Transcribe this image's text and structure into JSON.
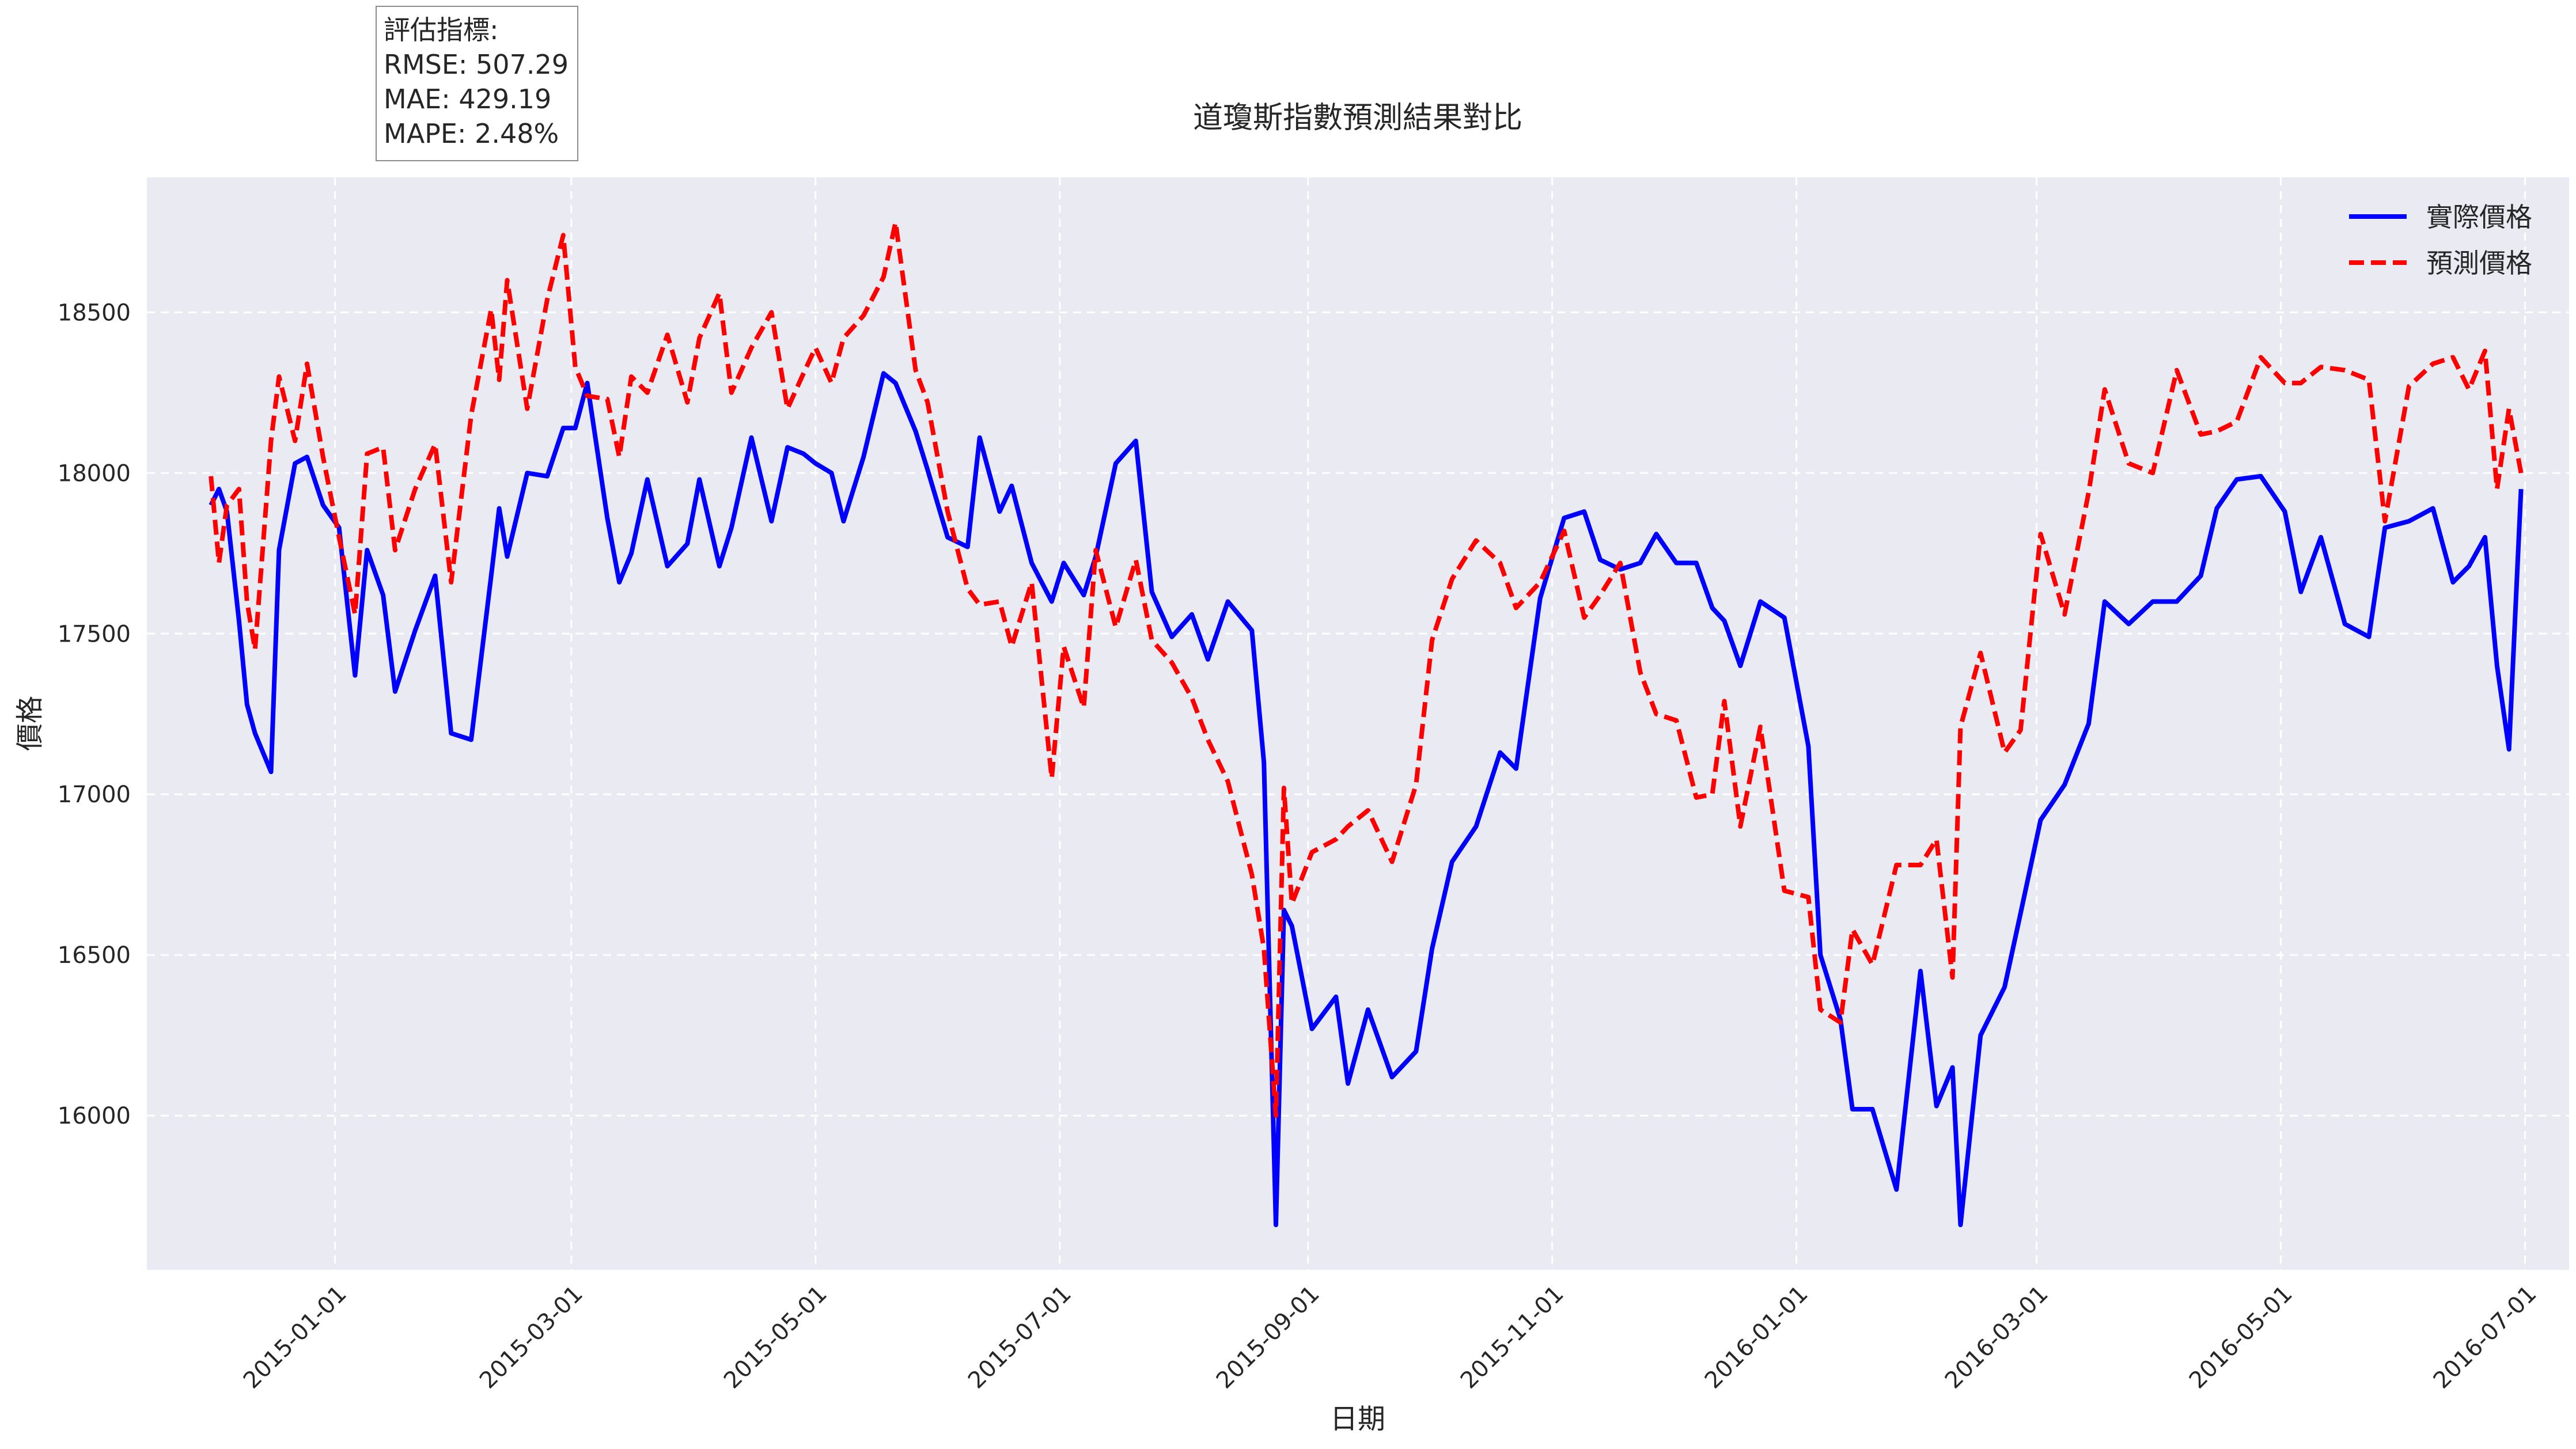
{
  "title": "道瓊斯指數預測結果對比",
  "metrics": {
    "heading": "評估指標:",
    "rmse": "RMSE: 507.29",
    "mae": "MAE: 429.19",
    "mape": "MAPE: 2.48%"
  },
  "legend": {
    "actual_label": "實際價格",
    "predicted_label": "預測價格"
  },
  "colors": {
    "actual": "#0000ff",
    "predicted": "#ff0000",
    "plot_background": "#eaeaf2",
    "grid": "#ffffff"
  },
  "chart_data": {
    "type": "line",
    "title": "道瓊斯指數預測結果對比",
    "xlabel": "日期",
    "ylabel": "價格",
    "xlim": [
      "2014-11-15",
      "2016-07-12"
    ],
    "ylim": [
      15520,
      18920
    ],
    "grid": true,
    "grid_style": "dashed",
    "legend_position": "top-right",
    "x_ticks": [
      "2015-01-01",
      "2015-03-01",
      "2015-05-01",
      "2015-07-01",
      "2015-09-01",
      "2015-11-01",
      "2016-01-01",
      "2016-03-01",
      "2016-05-01",
      "2016-07-01"
    ],
    "y_ticks": [
      16000,
      16500,
      17000,
      17500,
      18000,
      18500
    ],
    "series": [
      {
        "name": "實際價格",
        "style": "solid",
        "x": [
          "2014-12-01",
          "2014-12-03",
          "2014-12-05",
          "2014-12-08",
          "2014-12-10",
          "2014-12-12",
          "2014-12-16",
          "2014-12-18",
          "2014-12-22",
          "2014-12-25",
          "2014-12-29",
          "2015-01-02",
          "2015-01-06",
          "2015-01-09",
          "2015-01-13",
          "2015-01-16",
          "2015-01-21",
          "2015-01-26",
          "2015-01-30",
          "2015-02-04",
          "2015-02-09",
          "2015-02-11",
          "2015-02-13",
          "2015-02-18",
          "2015-02-23",
          "2015-02-27",
          "2015-03-02",
          "2015-03-05",
          "2015-03-10",
          "2015-03-13",
          "2015-03-16",
          "2015-03-20",
          "2015-03-25",
          "2015-03-30",
          "2015-04-02",
          "2015-04-07",
          "2015-04-10",
          "2015-04-15",
          "2015-04-20",
          "2015-04-24",
          "2015-04-28",
          "2015-05-01",
          "2015-05-05",
          "2015-05-08",
          "2015-05-13",
          "2015-05-18",
          "2015-05-21",
          "2015-05-26",
          "2015-05-29",
          "2015-06-03",
          "2015-06-08",
          "2015-06-11",
          "2015-06-16",
          "2015-06-19",
          "2015-06-24",
          "2015-06-29",
          "2015-07-02",
          "2015-07-07",
          "2015-07-10",
          "2015-07-15",
          "2015-07-20",
          "2015-07-24",
          "2015-07-29",
          "2015-08-03",
          "2015-08-07",
          "2015-08-12",
          "2015-08-18",
          "2015-08-21",
          "2015-08-24",
          "2015-08-26",
          "2015-08-28",
          "2015-09-02",
          "2015-09-08",
          "2015-09-11",
          "2015-09-16",
          "2015-09-22",
          "2015-09-28",
          "2015-10-02",
          "2015-10-07",
          "2015-10-13",
          "2015-10-19",
          "2015-10-23",
          "2015-10-29",
          "2015-11-04",
          "2015-11-09",
          "2015-11-13",
          "2015-11-18",
          "2015-11-23",
          "2015-11-27",
          "2015-12-02",
          "2015-12-07",
          "2015-12-11",
          "2015-12-14",
          "2015-12-18",
          "2015-12-23",
          "2015-12-29",
          "2016-01-04",
          "2016-01-07",
          "2016-01-12",
          "2016-01-15",
          "2016-01-20",
          "2016-01-26",
          "2016-02-01",
          "2016-02-05",
          "2016-02-09",
          "2016-02-11",
          "2016-02-16",
          "2016-02-22",
          "2016-02-26",
          "2016-03-02",
          "2016-03-08",
          "2016-03-14",
          "2016-03-18",
          "2016-03-24",
          "2016-03-30",
          "2016-04-05",
          "2016-04-11",
          "2016-04-15",
          "2016-04-20",
          "2016-04-26",
          "2016-05-02",
          "2016-05-06",
          "2016-05-11",
          "2016-05-17",
          "2016-05-23",
          "2016-05-27",
          "2016-06-02",
          "2016-06-08",
          "2016-06-13",
          "2016-06-17",
          "2016-06-21",
          "2016-06-24",
          "2016-06-27",
          "2016-06-30"
        ],
        "y": [
          17900,
          17950,
          17880,
          17540,
          17280,
          17190,
          17070,
          17760,
          18030,
          18050,
          17900,
          17830,
          17370,
          17760,
          17620,
          17320,
          17510,
          17680,
          17190,
          17170,
          17680,
          17890,
          17740,
          18000,
          17990,
          18140,
          18140,
          18280,
          17860,
          17660,
          17750,
          17980,
          17710,
          17780,
          17980,
          17710,
          17830,
          18110,
          17850,
          18080,
          18060,
          18030,
          18000,
          17850,
          18050,
          18310,
          18280,
          18130,
          18010,
          17800,
          17770,
          18110,
          17880,
          17960,
          17720,
          17600,
          17720,
          17620,
          17740,
          18030,
          18100,
          17630,
          17490,
          17560,
          17420,
          17600,
          17510,
          17100,
          15660,
          16640,
          16590,
          16270,
          16370,
          16100,
          16330,
          16120,
          16200,
          16520,
          16790,
          16900,
          17130,
          17080,
          17610,
          17860,
          17880,
          17730,
          17700,
          17720,
          17810,
          17720,
          17720,
          17580,
          17540,
          17400,
          17600,
          17550,
          17150,
          16500,
          16300,
          16020,
          16020,
          15770,
          16450,
          16030,
          16150,
          15660,
          16250,
          16400,
          16630,
          16920,
          17030,
          17220,
          17600,
          17530,
          17600,
          17600,
          17680,
          17890,
          17980,
          17990,
          17880,
          17630,
          17800,
          17530,
          17490,
          17830,
          17850,
          17890,
          17660,
          17710,
          17800,
          17400,
          17140,
          17950
        ]
      },
      {
        "name": "預測價格",
        "style": "dashed",
        "x": [
          "2014-12-01",
          "2014-12-03",
          "2014-12-05",
          "2014-12-08",
          "2014-12-10",
          "2014-12-12",
          "2014-12-16",
          "2014-12-18",
          "2014-12-22",
          "2014-12-25",
          "2014-12-29",
          "2015-01-02",
          "2015-01-06",
          "2015-01-09",
          "2015-01-13",
          "2015-01-16",
          "2015-01-21",
          "2015-01-26",
          "2015-01-30",
          "2015-02-04",
          "2015-02-09",
          "2015-02-11",
          "2015-02-13",
          "2015-02-18",
          "2015-02-23",
          "2015-02-27",
          "2015-03-02",
          "2015-03-05",
          "2015-03-10",
          "2015-03-13",
          "2015-03-16",
          "2015-03-20",
          "2015-03-25",
          "2015-03-30",
          "2015-04-02",
          "2015-04-07",
          "2015-04-10",
          "2015-04-15",
          "2015-04-20",
          "2015-04-24",
          "2015-04-28",
          "2015-05-01",
          "2015-05-05",
          "2015-05-08",
          "2015-05-13",
          "2015-05-18",
          "2015-05-21",
          "2015-05-26",
          "2015-05-29",
          "2015-06-03",
          "2015-06-08",
          "2015-06-11",
          "2015-06-16",
          "2015-06-19",
          "2015-06-24",
          "2015-06-29",
          "2015-07-02",
          "2015-07-07",
          "2015-07-10",
          "2015-07-15",
          "2015-07-20",
          "2015-07-24",
          "2015-07-29",
          "2015-08-03",
          "2015-08-07",
          "2015-08-12",
          "2015-08-18",
          "2015-08-21",
          "2015-08-24",
          "2015-08-26",
          "2015-08-28",
          "2015-09-02",
          "2015-09-08",
          "2015-09-11",
          "2015-09-16",
          "2015-09-22",
          "2015-09-28",
          "2015-10-02",
          "2015-10-07",
          "2015-10-13",
          "2015-10-19",
          "2015-10-23",
          "2015-10-29",
          "2015-11-04",
          "2015-11-09",
          "2015-11-13",
          "2015-11-18",
          "2015-11-23",
          "2015-11-27",
          "2015-12-02",
          "2015-12-07",
          "2015-12-11",
          "2015-12-14",
          "2015-12-18",
          "2015-12-23",
          "2015-12-29",
          "2016-01-04",
          "2016-01-07",
          "2016-01-12",
          "2016-01-15",
          "2016-01-20",
          "2016-01-26",
          "2016-02-01",
          "2016-02-05",
          "2016-02-09",
          "2016-02-11",
          "2016-02-16",
          "2016-02-22",
          "2016-02-26",
          "2016-03-02",
          "2016-03-08",
          "2016-03-14",
          "2016-03-18",
          "2016-03-24",
          "2016-03-30",
          "2016-04-05",
          "2016-04-11",
          "2016-04-15",
          "2016-04-20",
          "2016-04-26",
          "2016-05-02",
          "2016-05-06",
          "2016-05-11",
          "2016-05-17",
          "2016-05-23",
          "2016-05-27",
          "2016-06-02",
          "2016-06-08",
          "2016-06-13",
          "2016-06-17",
          "2016-06-21",
          "2016-06-24",
          "2016-06-27",
          "2016-06-30"
        ],
        "y": [
          17990,
          17720,
          17900,
          17950,
          17600,
          17450,
          18100,
          18300,
          18100,
          18340,
          18050,
          17800,
          17560,
          18060,
          18080,
          17760,
          17950,
          18090,
          17660,
          18180,
          18510,
          18290,
          18600,
          18200,
          18540,
          18740,
          18330,
          18240,
          18230,
          18050,
          18300,
          18250,
          18430,
          18220,
          18420,
          18560,
          18250,
          18390,
          18500,
          18200,
          18310,
          18390,
          18280,
          18420,
          18490,
          18610,
          18780,
          18320,
          18220,
          17880,
          17640,
          17590,
          17600,
          17460,
          17660,
          17050,
          17460,
          17270,
          17760,
          17520,
          17730,
          17480,
          17410,
          17300,
          17170,
          17040,
          16750,
          16520,
          16000,
          17020,
          16660,
          16820,
          16860,
          16900,
          16950,
          16790,
          17030,
          17480,
          17670,
          17790,
          17720,
          17580,
          17660,
          17820,
          17550,
          17620,
          17720,
          17380,
          17250,
          17230,
          16990,
          17000,
          17290,
          16900,
          17210,
          16700,
          16680,
          16330,
          16290,
          16580,
          16470,
          16780,
          16780,
          16860,
          16430,
          17210,
          17440,
          17130,
          17200,
          17810,
          17560,
          17940,
          18260,
          18030,
          18000,
          18320,
          18120,
          18130,
          18160,
          18360,
          18280,
          18280,
          18330,
          18320,
          18290,
          17850,
          18270,
          18340,
          18360,
          18260,
          18380,
          17950,
          18200,
          18000
        ]
      }
    ]
  }
}
